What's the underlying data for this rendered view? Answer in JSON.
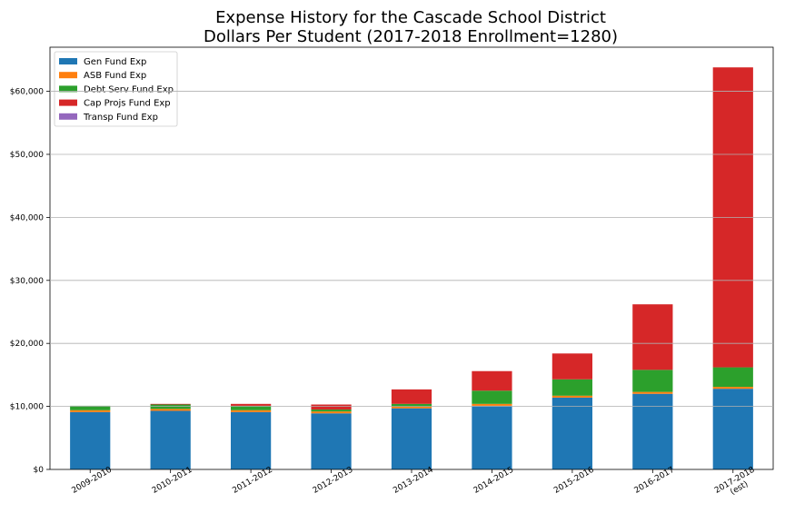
{
  "chart_data": {
    "type": "bar",
    "stacked": true,
    "title": "Expense History for the Cascade School District",
    "subtitle": "Dollars Per Student (2017-2018 Enrollment=1280)",
    "categories": [
      "2009-2010",
      "2010-2011",
      "2011-2012",
      "2012-2013",
      "2013-2014",
      "2014-2015",
      "2015-2016",
      "2016-2017",
      "2017-2018\n(est)"
    ],
    "series": [
      {
        "name": "Gen Fund Exp",
        "color": "#1f77b4",
        "values": [
          9100,
          9300,
          9100,
          8900,
          9700,
          10100,
          11400,
          12000,
          12800
        ]
      },
      {
        "name": "ASB Fund Exp",
        "color": "#ff7f0e",
        "values": [
          300,
          300,
          300,
          300,
          300,
          300,
          300,
          300,
          300
        ]
      },
      {
        "name": "Debt Serv Fund Exp",
        "color": "#2ca02c",
        "values": [
          700,
          700,
          700,
          300,
          400,
          2100,
          2600,
          3500,
          3100
        ]
      },
      {
        "name": "Cap Projs Fund Exp",
        "color": "#d62728",
        "values": [
          0,
          100,
          300,
          800,
          2300,
          3100,
          4100,
          10400,
          47600
        ]
      },
      {
        "name": "Transp Fund Exp",
        "color": "#9467bd",
        "values": [
          0,
          0,
          0,
          0,
          0,
          0,
          0,
          0,
          0
        ]
      }
    ],
    "xlabel": "",
    "ylabel": "",
    "ylim": [
      0,
      67000
    ],
    "yticks": [
      0,
      10000,
      20000,
      30000,
      40000,
      50000,
      60000
    ],
    "ytick_labels": [
      "$0",
      "$10,000",
      "$20,000",
      "$30,000",
      "$40,000",
      "$50,000",
      "$60,000"
    ],
    "grid": "horizontal",
    "legend": "top-left"
  }
}
